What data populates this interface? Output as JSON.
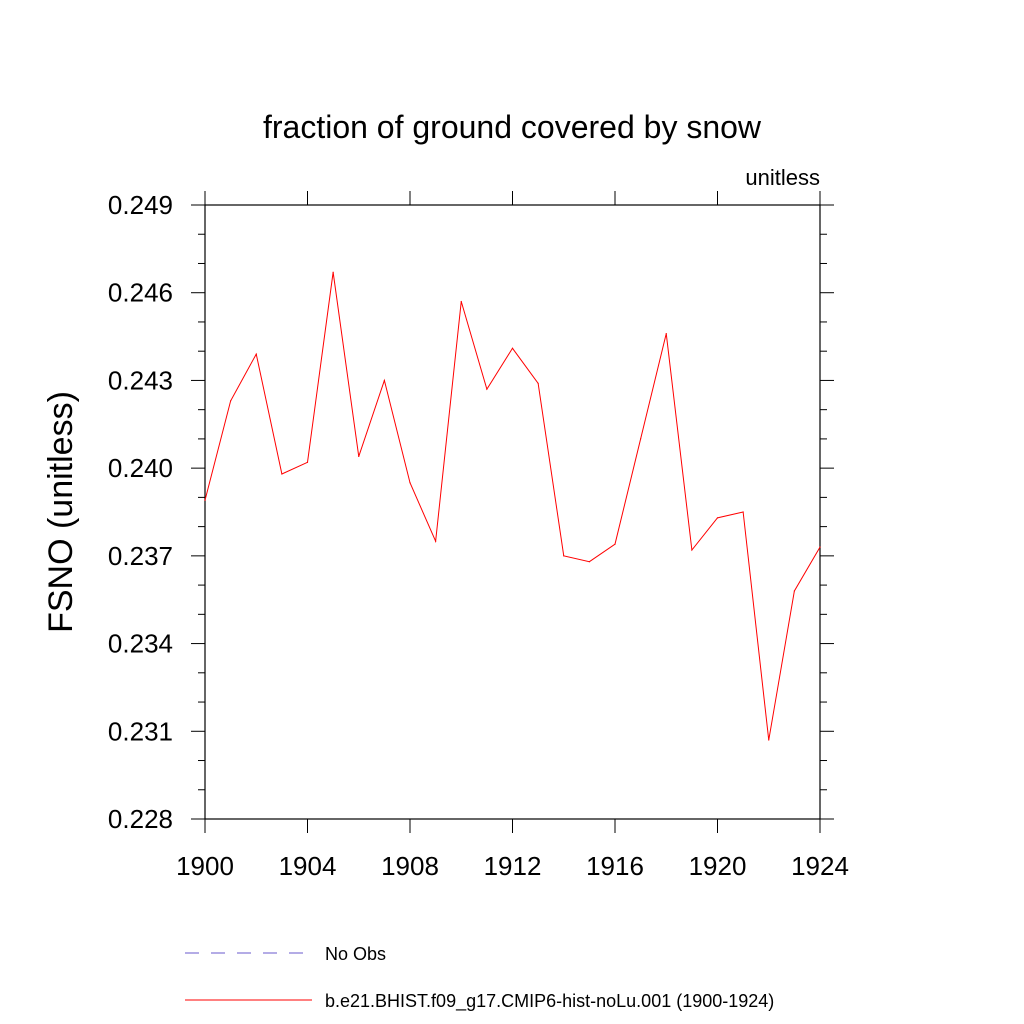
{
  "chart_data": {
    "type": "line",
    "title": "fraction of ground covered by snow",
    "units_label": "unitless",
    "xlabel": "",
    "ylabel": "FSNO  (unitless)",
    "xlim": [
      1900,
      1924
    ],
    "ylim": [
      0.228,
      0.249
    ],
    "xticks": [
      "1900",
      "1904",
      "1908",
      "1912",
      "1916",
      "1920",
      "1924"
    ],
    "yticks": [
      "0.249",
      "0.246",
      "0.243",
      "0.240",
      "0.237",
      "0.234",
      "0.231",
      "0.228"
    ],
    "x": [
      1900,
      1901,
      1902,
      1903,
      1904,
      1905,
      1906,
      1907,
      1908,
      1909,
      1910,
      1911,
      1912,
      1913,
      1914,
      1915,
      1916,
      1917,
      1918,
      1919,
      1920,
      1921,
      1922,
      1923,
      1924
    ],
    "series": [
      {
        "name": "b.e21.BHIST.f09_g17.CMIP6-hist-noLu.001 (1900-1924)",
        "color": "#ff0000",
        "style": "solid",
        "values": [
          0.2389,
          0.2423,
          0.2439,
          0.2398,
          0.2402,
          0.2467,
          0.2404,
          0.243,
          0.2395,
          0.2375,
          0.2457,
          0.2427,
          0.2441,
          0.2429,
          0.237,
          0.2368,
          0.2374,
          0.241,
          0.2446,
          0.2372,
          0.2383,
          0.2385,
          0.2307,
          0.2358,
          0.2373
        ]
      }
    ],
    "legend": [
      {
        "label": "No Obs",
        "color": "#6a5acd",
        "style": "dashed"
      },
      {
        "label": "b.e21.BHIST.f09_g17.CMIP6-hist-noLu.001 (1900-1924)",
        "color": "#ff0000",
        "style": "solid"
      }
    ],
    "legend_placement": "bottom",
    "grid": false
  }
}
